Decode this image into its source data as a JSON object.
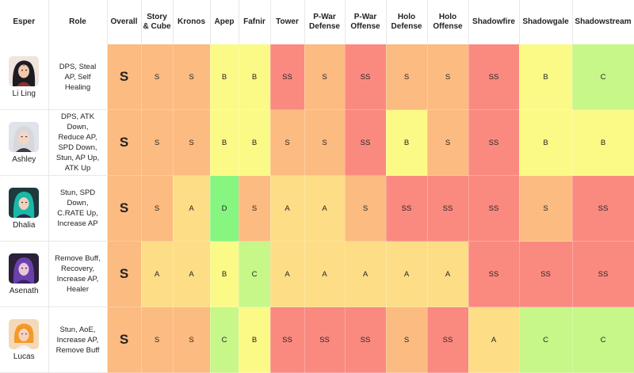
{
  "colors": {
    "SS": "#fa8a80",
    "S": "#fcbb80",
    "A": "#fddd86",
    "B": "#fbfa86",
    "C": "#c7f689",
    "D": "#86f680"
  },
  "headers": [
    "Esper",
    "Role",
    "Overall",
    "Story & Cube",
    "Kronos",
    "Apep",
    "Fafnir",
    "Tower",
    "P-War Defense",
    "P-War Offense",
    "Holo Defense",
    "Holo Offense",
    "Shadowfire",
    "Shadowgale",
    "Shadowstream"
  ],
  "rows": [
    {
      "name": "Li Ling",
      "avatar_icon": "li-ling-portrait-icon",
      "role": "DPS, Steal AP, Self Healing",
      "tiers": [
        "S",
        "S",
        "S",
        "B",
        "B",
        "SS",
        "S",
        "SS",
        "S",
        "S",
        "SS",
        "B",
        "C"
      ]
    },
    {
      "name": "Ashley",
      "avatar_icon": "ashley-portrait-icon",
      "role": "DPS, ATK Down, Reduce AP, SPD Down, Stun, AP Up, ATK Up",
      "tiers": [
        "S",
        "S",
        "S",
        "B",
        "B",
        "S",
        "S",
        "SS",
        "B",
        "S",
        "SS",
        "B",
        "B"
      ]
    },
    {
      "name": "Dhalia",
      "avatar_icon": "dhalia-portrait-icon",
      "role": "Stun, SPD Down, C.RATE Up, Increase AP",
      "tiers": [
        "S",
        "S",
        "A",
        "D",
        "S",
        "A",
        "A",
        "S",
        "SS",
        "SS",
        "SS",
        "S",
        "SS"
      ]
    },
    {
      "name": "Asenath",
      "avatar_icon": "asenath-portrait-icon",
      "role": "Remove Buff, Recovery, Increase AP, Healer",
      "tiers": [
        "S",
        "A",
        "A",
        "B",
        "C",
        "A",
        "A",
        "A",
        "A",
        "A",
        "SS",
        "SS",
        "SS"
      ]
    },
    {
      "name": "Lucas",
      "avatar_icon": "lucas-portrait-icon",
      "role": "Stun, AoE, Increase AP, Remove Buff",
      "tiers": [
        "S",
        "S",
        "S",
        "C",
        "B",
        "SS",
        "SS",
        "SS",
        "S",
        "SS",
        "A",
        "C",
        "C"
      ]
    }
  ]
}
